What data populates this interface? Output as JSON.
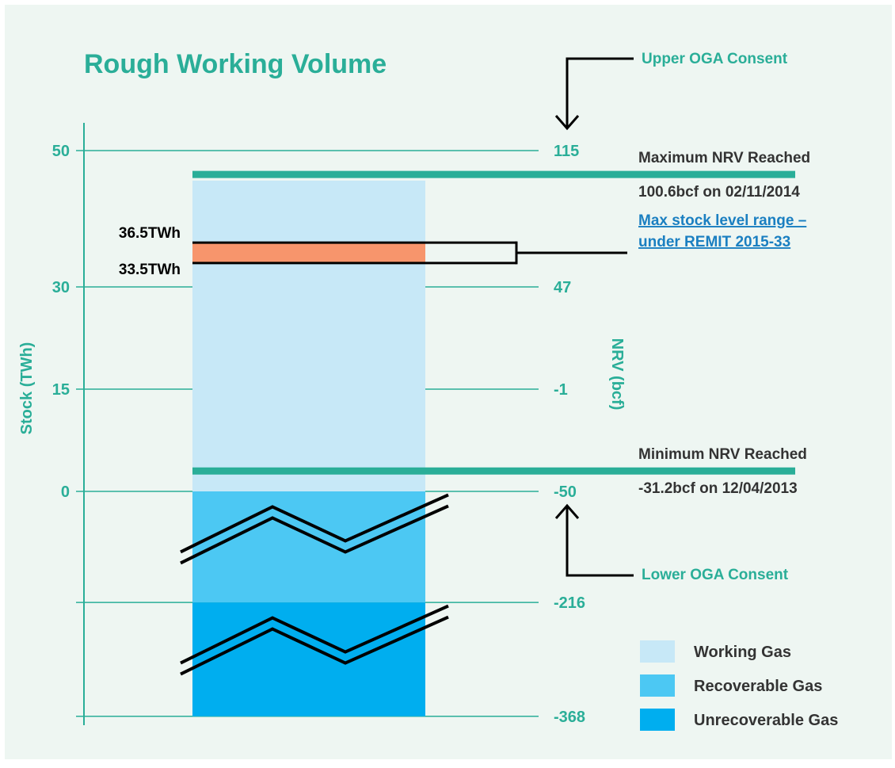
{
  "colors": {
    "background": "#eef6f2",
    "teal": "#2aae98",
    "working_gas": "#c7e8f7",
    "recoverable_gas": "#4cc8f3",
    "unrecoverable_gas": "#00aeef",
    "stock_band": "#f7956c",
    "dark_text": "#333333",
    "link": "#1a7fc1",
    "black": "#000000"
  },
  "chart_data": {
    "type": "bar",
    "title": "Rough Working Volume",
    "left_axis": {
      "label": "Stock (TWh)",
      "ticks": [
        {
          "value": 50,
          "label": "50"
        },
        {
          "value": 30,
          "label": "30"
        },
        {
          "value": 15,
          "label": "15"
        },
        {
          "value": 0,
          "label": "0"
        },
        {
          "value": -16.3,
          "label": ""
        },
        {
          "value": -33,
          "label": ""
        }
      ],
      "range": [
        -33,
        55
      ]
    },
    "right_axis": {
      "label": "NRV (bcf)",
      "ticks": [
        {
          "label": "115",
          "twh": 50
        },
        {
          "label": "47",
          "twh": 30
        },
        {
          "label": "-1",
          "twh": 15
        },
        {
          "label": "-50",
          "twh": 0
        },
        {
          "label": "-216",
          "twh": -16.3
        },
        {
          "label": "-368",
          "twh": -33
        }
      ]
    },
    "segments": [
      {
        "name": "Working Gas",
        "from": 0,
        "to": 45.6,
        "color_key": "working_gas"
      },
      {
        "name": "Recoverable Gas",
        "from": -16.3,
        "to": 0,
        "color_key": "recoverable_gas"
      },
      {
        "name": "Unrecoverable Gas",
        "from": -33,
        "to": -16.3,
        "color_key": "unrecoverable_gas"
      }
    ],
    "stock_range": {
      "low": 33.5,
      "high": 36.5,
      "low_label": "33.5TWh",
      "high_label": "36.5TWh",
      "annotation": [
        "Max stock level range –",
        "under REMIT 2015-33"
      ]
    },
    "reference_lines": [
      {
        "name": "max_nrv",
        "twh": 46.5,
        "title": "Maximum NRV Reached",
        "detail": "100.6bcf on 02/11/2014"
      },
      {
        "name": "min_nrv",
        "twh": 3,
        "title": "Minimum NRV Reached",
        "detail": "-31.2bcf on 12/04/2013"
      }
    ],
    "consent_labels": {
      "upper": "Upper OGA Consent",
      "lower": "Lower OGA Consent"
    },
    "legend": {
      "placement": "bottom-right",
      "items": [
        {
          "label": "Working Gas",
          "color_key": "working_gas"
        },
        {
          "label": "Recoverable Gas",
          "color_key": "recoverable_gas"
        },
        {
          "label": "Unrecoverable Gas",
          "color_key": "unrecoverable_gas"
        }
      ]
    },
    "axis_breaks": [
      -4.7,
      -21
    ]
  }
}
